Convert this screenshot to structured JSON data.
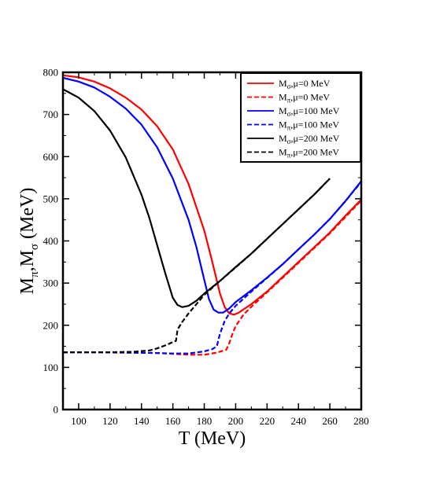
{
  "chart_data": {
    "type": "line",
    "xlabel": "T (MeV)",
    "ylabel": {
      "main": "M",
      "sub1": "π",
      "mid": ",M",
      "sub2": "σ",
      "tail": " (MeV)"
    },
    "xlim": [
      90,
      280
    ],
    "ylim": [
      0,
      800
    ],
    "xticks": [
      100,
      120,
      140,
      160,
      180,
      200,
      220,
      240,
      260,
      280
    ],
    "yticks": [
      0,
      100,
      200,
      300,
      400,
      500,
      600,
      700,
      800
    ],
    "legend_position": "top-right",
    "grid": false,
    "series": [
      {
        "name": "Mσ,μ=0 MeV",
        "legend": {
          "base": "M",
          "sub": "σ",
          "rest": ",μ=0 MeV"
        },
        "color": "#ff0000",
        "dash": "solid",
        "points": [
          [
            90,
            793
          ],
          [
            100,
            788
          ],
          [
            110,
            778
          ],
          [
            120,
            762
          ],
          [
            130,
            740
          ],
          [
            140,
            712
          ],
          [
            150,
            672
          ],
          [
            160,
            617
          ],
          [
            170,
            535
          ],
          [
            180,
            425
          ],
          [
            185,
            352
          ],
          [
            190,
            275
          ],
          [
            193,
            243
          ],
          [
            196,
            228
          ],
          [
            199,
            225
          ],
          [
            202,
            230
          ],
          [
            210,
            250
          ],
          [
            220,
            280
          ],
          [
            230,
            315
          ],
          [
            240,
            350
          ],
          [
            250,
            385
          ],
          [
            260,
            420
          ],
          [
            270,
            460
          ],
          [
            280,
            498
          ]
        ]
      },
      {
        "name": "Mπ,μ=0 MeV",
        "legend": {
          "base": "M",
          "sub": "π",
          "rest": ",μ=0 MeV"
        },
        "color": "#ff0000",
        "dash": "dashed",
        "points": [
          [
            90,
            136
          ],
          [
            110,
            136
          ],
          [
            130,
            135
          ],
          [
            150,
            134
          ],
          [
            160,
            132
          ],
          [
            170,
            130
          ],
          [
            180,
            130
          ],
          [
            188,
            135
          ],
          [
            194,
            142
          ],
          [
            196,
            158
          ],
          [
            198,
            180
          ],
          [
            200,
            198
          ],
          [
            205,
            225
          ],
          [
            210,
            244
          ],
          [
            220,
            278
          ],
          [
            230,
            313
          ],
          [
            240,
            348
          ],
          [
            250,
            383
          ],
          [
            260,
            418
          ],
          [
            270,
            457
          ],
          [
            280,
            496
          ]
        ]
      },
      {
        "name": "Mσ,μ=100 MeV",
        "legend": {
          "base": "M",
          "sub": "σ",
          "rest": ",μ=100 MeV"
        },
        "color": "#0000ff",
        "dash": "solid",
        "points": [
          [
            90,
            787
          ],
          [
            100,
            778
          ],
          [
            110,
            764
          ],
          [
            120,
            742
          ],
          [
            130,
            714
          ],
          [
            140,
            676
          ],
          [
            150,
            622
          ],
          [
            160,
            548
          ],
          [
            170,
            450
          ],
          [
            175,
            385
          ],
          [
            180,
            308
          ],
          [
            183,
            262
          ],
          [
            186,
            237
          ],
          [
            189,
            230
          ],
          [
            192,
            230
          ],
          [
            196,
            240
          ],
          [
            200,
            255
          ],
          [
            210,
            283
          ],
          [
            220,
            313
          ],
          [
            230,
            345
          ],
          [
            240,
            380
          ],
          [
            250,
            415
          ],
          [
            260,
            452
          ],
          [
            270,
            495
          ],
          [
            280,
            542
          ]
        ]
      },
      {
        "name": "Mπ,μ=100 MeV",
        "legend": {
          "base": "M",
          "sub": "π",
          "rest": ",μ=100 MeV"
        },
        "color": "#0000ff",
        "dash": "dashed",
        "points": [
          [
            90,
            136
          ],
          [
            110,
            136
          ],
          [
            130,
            135
          ],
          [
            150,
            134
          ],
          [
            160,
            133
          ],
          [
            170,
            133
          ],
          [
            180,
            138
          ],
          [
            185,
            143
          ],
          [
            188,
            150
          ],
          [
            190,
            180
          ],
          [
            193,
            210
          ],
          [
            196,
            228
          ],
          [
            200,
            246
          ],
          [
            210,
            280
          ],
          [
            220,
            312
          ],
          [
            230,
            345
          ],
          [
            240,
            380
          ],
          [
            250,
            415
          ],
          [
            260,
            452
          ],
          [
            270,
            495
          ],
          [
            280,
            540
          ]
        ]
      },
      {
        "name": "Mσ,μ=200 MeV",
        "legend": {
          "base": "M",
          "sub": "σ",
          "rest": ",μ=200 MeV"
        },
        "color": "#000000",
        "dash": "solid",
        "points": [
          [
            90,
            760
          ],
          [
            100,
            740
          ],
          [
            110,
            708
          ],
          [
            120,
            662
          ],
          [
            130,
            598
          ],
          [
            140,
            510
          ],
          [
            145,
            455
          ],
          [
            150,
            390
          ],
          [
            155,
            325
          ],
          [
            160,
            265
          ],
          [
            163,
            248
          ],
          [
            166,
            243
          ],
          [
            170,
            246
          ],
          [
            175,
            258
          ],
          [
            180,
            275
          ],
          [
            190,
            305
          ],
          [
            200,
            338
          ],
          [
            210,
            370
          ],
          [
            220,
            405
          ],
          [
            230,
            440
          ],
          [
            240,
            475
          ],
          [
            250,
            510
          ],
          [
            260,
            548
          ]
        ]
      },
      {
        "name": "Mπ,μ=200 MeV",
        "legend": {
          "base": "M",
          "sub": "π",
          "rest": ",μ=200 MeV"
        },
        "color": "#000000",
        "dash": "dashed",
        "points": [
          [
            90,
            136
          ],
          [
            120,
            136
          ],
          [
            135,
            137
          ],
          [
            145,
            140
          ],
          [
            150,
            145
          ],
          [
            155,
            152
          ],
          [
            160,
            160
          ],
          [
            162,
            163
          ],
          [
            163,
            190
          ],
          [
            166,
            208
          ],
          [
            170,
            228
          ],
          [
            175,
            250
          ],
          [
            180,
            272
          ],
          [
            190,
            305
          ],
          [
            200,
            337
          ],
          [
            210,
            370
          ],
          [
            220,
            405
          ],
          [
            230,
            440
          ],
          [
            240,
            475
          ],
          [
            250,
            510
          ],
          [
            260,
            548
          ]
        ]
      }
    ]
  }
}
